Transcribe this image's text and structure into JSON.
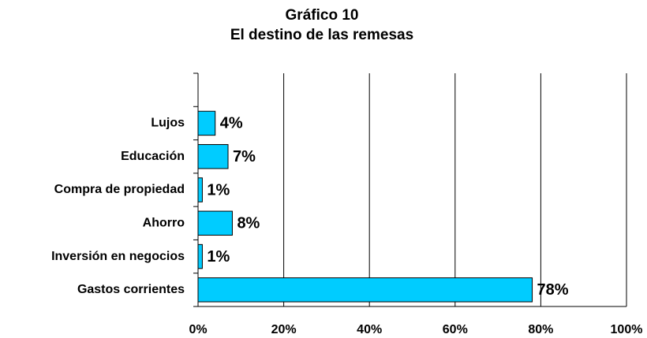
{
  "chart_data": {
    "type": "bar",
    "orientation": "horizontal",
    "title": "Gráfico 10",
    "subtitle": "El destino de las remesas",
    "categories": [
      null,
      "Lujos",
      "Educación",
      "Compra de propiedad",
      "Ahorro",
      "Inversión en negocios",
      "Gastos corrientes"
    ],
    "values": [
      null,
      4,
      7,
      1,
      8,
      1,
      78
    ],
    "value_labels": [
      null,
      "4%",
      "7%",
      "1%",
      "8%",
      "1%",
      "78%"
    ],
    "color": "#00ccff",
    "xlim": [
      0,
      100
    ],
    "xticks": [
      {
        "value": 0,
        "label": "0%"
      },
      {
        "value": 20,
        "label": "20%"
      },
      {
        "value": 40,
        "label": "40%"
      },
      {
        "value": 60,
        "label": "60%"
      },
      {
        "value": 80,
        "label": "80%"
      },
      {
        "value": 100,
        "label": "100%"
      }
    ],
    "grid": true
  }
}
